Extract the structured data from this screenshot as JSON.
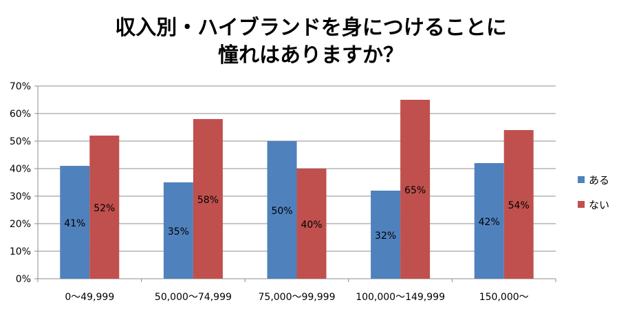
{
  "chart_data": {
    "type": "bar",
    "title": [
      "収入別・ハイブランドを身につけることに",
      "憧れはありますか？"
    ],
    "categories": [
      "0～49,999",
      "50,000～74,999",
      "75,000～99,999",
      "100,000～149,999",
      "150,000～"
    ],
    "series": [
      {
        "name": "ある",
        "color": "#4f81bd",
        "values": [
          41,
          35,
          50,
          32,
          42
        ]
      },
      {
        "name": "ない",
        "color": "#c0504d",
        "values": [
          52,
          58,
          40,
          65,
          54
        ]
      }
    ],
    "y_ticks": [
      "0%",
      "10%",
      "20%",
      "30%",
      "40%",
      "50%",
      "60%",
      "70%"
    ],
    "ylim": [
      0,
      70
    ],
    "unit": "%",
    "data_labels": true,
    "grid": true,
    "legend": "right"
  }
}
